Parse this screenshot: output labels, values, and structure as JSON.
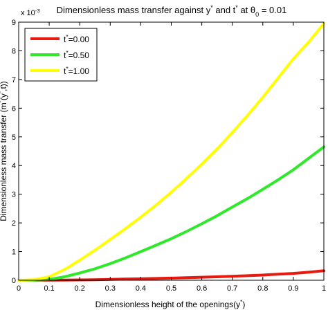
{
  "chart_data": {
    "type": "line",
    "title": "Dimensionless mass transfer against y* and t* at θ0 = 0.01",
    "xlabel": "Dimensionless height of the openings(y*)",
    "ylabel": "Dimensionless mass transfer (m*(y*,t))",
    "exponent_label": "x 10^-3",
    "xlim": [
      0,
      1
    ],
    "ylim": [
      0,
      9
    ],
    "y_scale_factor": 0.001,
    "xticks": [
      0,
      0.1,
      0.2,
      0.3,
      0.4,
      0.5,
      0.6,
      0.7,
      0.8,
      0.9,
      1
    ],
    "xtick_labels": [
      "0",
      "0.1",
      "0.2",
      "0.3",
      "0.4",
      "0.5",
      "0.6",
      "0.7",
      "0.8",
      "0.9",
      "1"
    ],
    "yticks": [
      0,
      1,
      2,
      3,
      4,
      5,
      6,
      7,
      8,
      9
    ],
    "ytick_labels": [
      "0",
      "1",
      "2",
      "3",
      "4",
      "5",
      "6",
      "7",
      "8",
      "9"
    ],
    "grid": false,
    "legend_position": "top-left",
    "x": [
      0,
      0.05,
      0.1,
      0.15,
      0.2,
      0.25,
      0.3,
      0.35,
      0.4,
      0.45,
      0.5,
      0.55,
      0.6,
      0.65,
      0.7,
      0.75,
      0.8,
      0.85,
      0.9,
      0.95,
      1
    ],
    "series": [
      {
        "name": "t*=0.00",
        "color": "#e8190f",
        "values": [
          0,
          0.0,
          0.003,
          0.008,
          0.013,
          0.02,
          0.03,
          0.04,
          0.05,
          0.062,
          0.075,
          0.09,
          0.105,
          0.12,
          0.14,
          0.16,
          0.18,
          0.21,
          0.24,
          0.28,
          0.33
        ]
      },
      {
        "name": "t*=0.50",
        "color": "#2ee82a",
        "values": [
          0,
          0.0,
          0.03,
          0.12,
          0.25,
          0.4,
          0.58,
          0.78,
          1.0,
          1.22,
          1.45,
          1.7,
          1.97,
          2.25,
          2.55,
          2.85,
          3.17,
          3.5,
          3.85,
          4.25,
          4.65
        ]
      },
      {
        "name": "t*=1.00",
        "color": "#ffff00",
        "values": [
          0,
          0.02,
          0.12,
          0.37,
          0.7,
          1.05,
          1.42,
          1.8,
          2.2,
          2.62,
          3.07,
          3.55,
          4.05,
          4.58,
          5.15,
          5.75,
          6.38,
          7.05,
          7.72,
          8.3,
          8.95
        ]
      }
    ]
  }
}
